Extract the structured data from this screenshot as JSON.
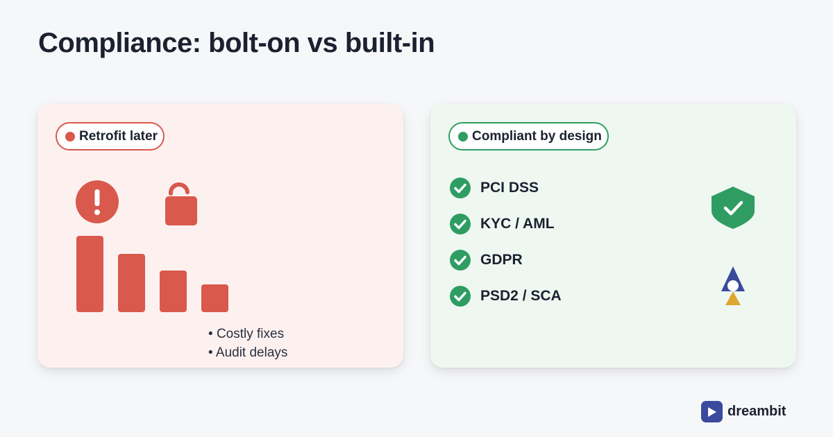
{
  "title": "Compliance: bolt-on vs built-in",
  "left_card": {
    "pill_label": "Retrofit later",
    "bars": [
      110,
      84,
      60,
      40
    ],
    "bullets": [
      "Costly fixes",
      "Audit delays"
    ]
  },
  "right_card": {
    "pill_label": "Compliant by design",
    "checklist": [
      "PCI DSS",
      "KYC / AML",
      "GDPR",
      "PSD2 / SCA"
    ]
  },
  "icons": {
    "alert": "exclamation-alert-icon",
    "unlock": "unlocked-padlock-icon",
    "check": "check-circle-icon",
    "shield": "shield-check-icon",
    "pawn": "pawn-figure-icon",
    "logo": "play-logo-icon"
  },
  "colors": {
    "red": "#d9594c",
    "green": "#2f9d62",
    "navy": "#3a4a9c",
    "gold": "#e0a52f"
  },
  "brand": {
    "name": "dreambit"
  }
}
